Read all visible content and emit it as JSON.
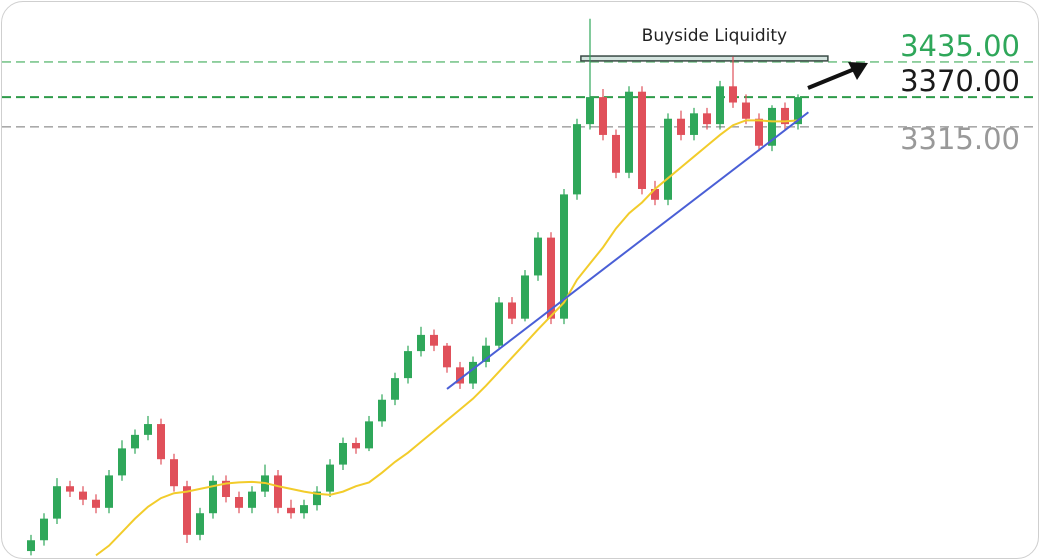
{
  "chart_data": {
    "type": "candlestick",
    "up_color": "#2fa75a",
    "down_color": "#e0505a",
    "ylim": [
      2519,
      3546
    ],
    "open": [
      2530,
      2550,
      2590,
      2650,
      2640,
      2625,
      2610,
      2670,
      2720,
      2745,
      2765,
      2700,
      2650,
      2560,
      2600,
      2660,
      2630,
      2610,
      2640,
      2670,
      2610,
      2600,
      2615,
      2640,
      2690,
      2730,
      2720,
      2770,
      2810,
      2850,
      2900,
      2930,
      2910,
      2870,
      2840,
      2880,
      2910,
      2990,
      2960,
      3040,
      3110,
      2960,
      3190,
      3320,
      3370,
      3300,
      3230,
      3380,
      3200,
      3180,
      3330,
      3300,
      3340,
      3320,
      3390,
      3360,
      3330,
      3280,
      3350,
      3320
    ],
    "high": [
      2560,
      2600,
      2665,
      2660,
      2650,
      2635,
      2680,
      2735,
      2755,
      2780,
      2775,
      2710,
      2660,
      2610,
      2670,
      2670,
      2640,
      2650,
      2690,
      2680,
      2625,
      2625,
      2650,
      2700,
      2740,
      2740,
      2780,
      2820,
      2860,
      2910,
      2945,
      2940,
      2915,
      2880,
      2890,
      2925,
      3000,
      3000,
      3050,
      3120,
      3120,
      3200,
      3330,
      3515,
      3385,
      3310,
      3390,
      3390,
      3215,
      3340,
      3345,
      3350,
      3350,
      3400,
      3445,
      3375,
      3340,
      3355,
      3360,
      3375
    ],
    "low": [
      2522,
      2540,
      2580,
      2630,
      2615,
      2600,
      2600,
      2660,
      2710,
      2735,
      2690,
      2640,
      2545,
      2550,
      2590,
      2620,
      2600,
      2600,
      2630,
      2600,
      2590,
      2590,
      2605,
      2630,
      2680,
      2710,
      2715,
      2760,
      2800,
      2840,
      2890,
      2900,
      2860,
      2830,
      2830,
      2870,
      2905,
      2950,
      2955,
      3030,
      2950,
      2950,
      3180,
      3310,
      3290,
      3220,
      3220,
      3190,
      3170,
      3170,
      3290,
      3290,
      3310,
      3310,
      3350,
      3320,
      3270,
      3270,
      3310,
      3310
    ],
    "close": [
      2550,
      2590,
      2650,
      2640,
      2625,
      2610,
      2670,
      2720,
      2745,
      2765,
      2700,
      2650,
      2560,
      2600,
      2660,
      2630,
      2610,
      2640,
      2670,
      2610,
      2600,
      2615,
      2640,
      2690,
      2730,
      2720,
      2770,
      2810,
      2850,
      2900,
      2930,
      2910,
      2870,
      2840,
      2880,
      2910,
      2990,
      2960,
      3040,
      3110,
      2960,
      3190,
      3320,
      3370,
      3300,
      3230,
      3380,
      3200,
      3180,
      3330,
      3300,
      3340,
      3320,
      3390,
      3360,
      3330,
      3280,
      3350,
      3320,
      3370
    ],
    "moving_average": {
      "color": "#f2cc2b",
      "values": [
        null,
        null,
        null,
        null,
        null,
        2522,
        2540,
        2565,
        2590,
        2612,
        2628,
        2637,
        2640,
        2645,
        2650,
        2655,
        2657,
        2658,
        2656,
        2650,
        2645,
        2640,
        2636,
        2634,
        2640,
        2650,
        2657,
        2675,
        2695,
        2712,
        2732,
        2752,
        2772,
        2792,
        2812,
        2836,
        2862,
        2888,
        2914,
        2940,
        2965,
        2990,
        3032,
        3062,
        3092,
        3127,
        3155,
        3175,
        3200,
        3220,
        3240,
        3260,
        3280,
        3300,
        3318,
        3327,
        3327,
        3325,
        3325,
        3327
      ]
    },
    "trendline": {
      "color": "#4a5fd6",
      "x": [
        32,
        59.8
      ],
      "y": [
        2830,
        3342
      ]
    },
    "zone": {
      "label": "Buyside Liquidity",
      "x": [
        42.3,
        61.3
      ],
      "y": [
        3437,
        3446
      ]
    },
    "levels": [
      {
        "value": 3435,
        "label": "3435.00",
        "line_color": "#7cc68d",
        "label_color": "#2fa75a"
      },
      {
        "value": 3370,
        "label": "3370.00",
        "line_color": "#2e9b4a",
        "label_color": "#1a1a1a"
      },
      {
        "value": 3315,
        "label": "3315.00",
        "line_color": "#aaaaaa",
        "label_color": "#999999"
      }
    ]
  }
}
